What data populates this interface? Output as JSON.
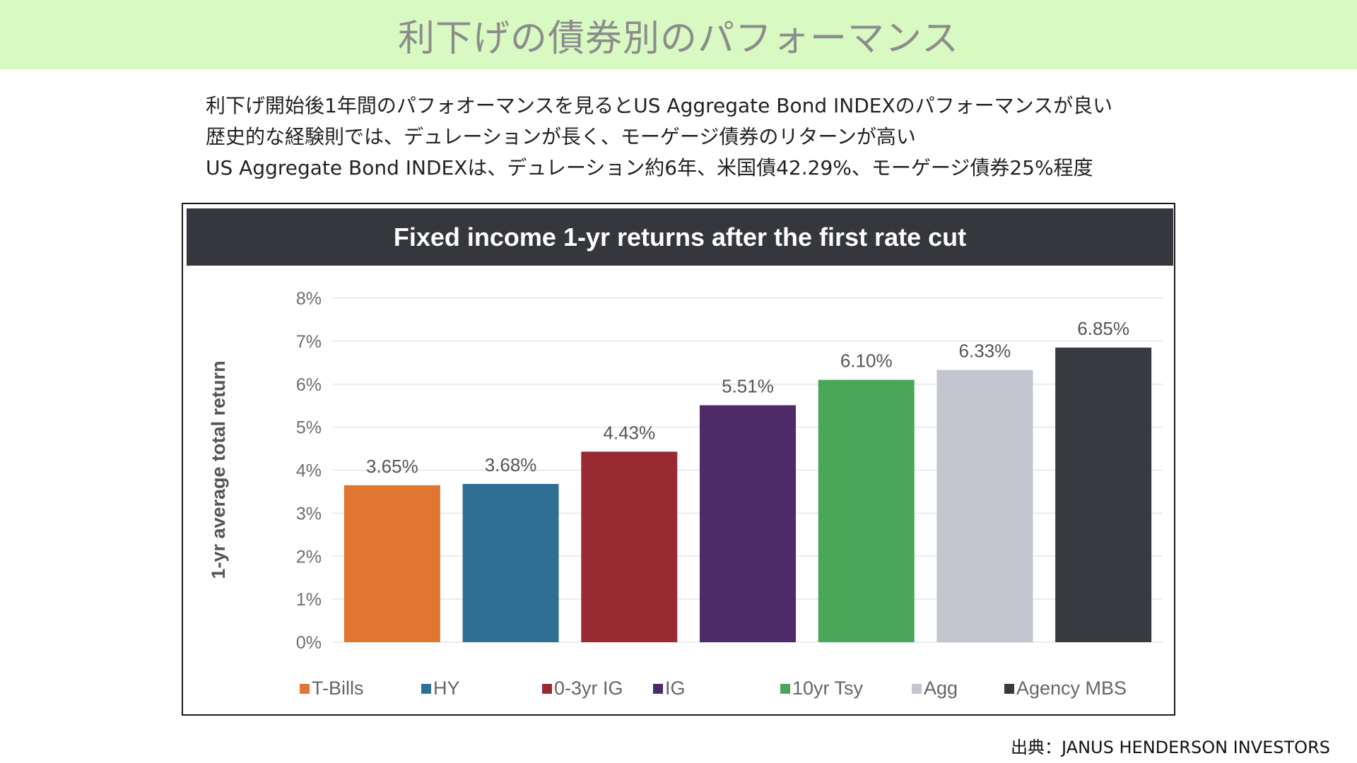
{
  "header": {
    "title": "利下げの債券別のパフォーマンス"
  },
  "bullets": [
    "利下げ開始後1年間のパフォオーマンスを見るとUS Aggregate Bond INDEXのパフォーマンスが良い",
    "歴史的な経験則では、デュレーションが長く、モーゲージ債券のリターンが高い",
    "US Aggregate Bond INDEXは、デュレーション約6年、米国債42.29%、モーゲージ債券25%程度"
  ],
  "source": "出典：JANUS HENDERSON INVESTORS",
  "chart_data": {
    "type": "bar",
    "title": "Fixed income 1-yr returns after the first rate cut",
    "ylabel": "1-yr average total return",
    "xlabel": "",
    "ylim": [
      0,
      8
    ],
    "yticks": [
      "0%",
      "1%",
      "2%",
      "3%",
      "4%",
      "5%",
      "6%",
      "7%",
      "8%"
    ],
    "grid": true,
    "legend": "bottom",
    "categories": [
      "T-Bills",
      "HY",
      "0-3yr IG",
      "IG",
      "10yr Tsy",
      "Agg",
      "Agency MBS"
    ],
    "values": [
      3.65,
      3.68,
      4.43,
      5.51,
      6.1,
      6.33,
      6.85
    ],
    "labels": [
      "3.65%",
      "3.68%",
      "4.43%",
      "5.51%",
      "6.10%",
      "6.33%",
      "6.85%"
    ],
    "colors": [
      "#e07630",
      "#2f6f95",
      "#9a2a32",
      "#4f2a68",
      "#4aa65a",
      "#c3c6d1",
      "#393a41"
    ]
  }
}
